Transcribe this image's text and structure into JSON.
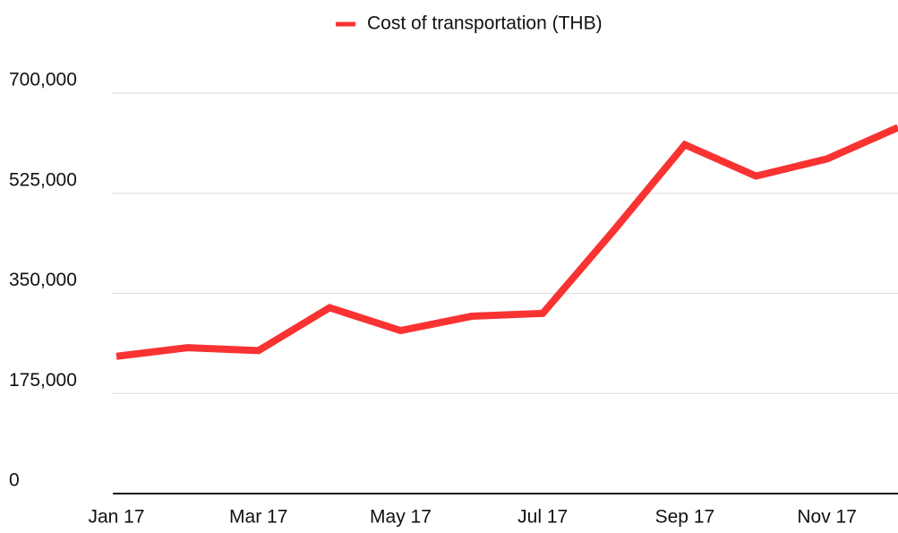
{
  "chart_data": {
    "type": "line",
    "categories": [
      "Jan 17",
      null,
      "Mar 17",
      null,
      "May 17",
      null,
      "Jul 17",
      null,
      "Sep 17",
      null,
      "Nov 17",
      null
    ],
    "series": [
      {
        "name": "Cost of transportation (THB)",
        "color": "#f93232",
        "values": [
          240000,
          255000,
          250000,
          325000,
          285000,
          310000,
          315000,
          460000,
          610000,
          555000,
          585000,
          640000
        ]
      }
    ],
    "ylim": [
      0,
      700000
    ],
    "yticks": [
      0,
      {
        "value": 175000,
        "label": "175,000"
      },
      {
        "value": 350000,
        "label": "350,000"
      },
      {
        "value": 525000,
        "label": "525,000"
      },
      {
        "value": 700000,
        "label": "700,000"
      }
    ],
    "grid": true,
    "legend": "top"
  }
}
